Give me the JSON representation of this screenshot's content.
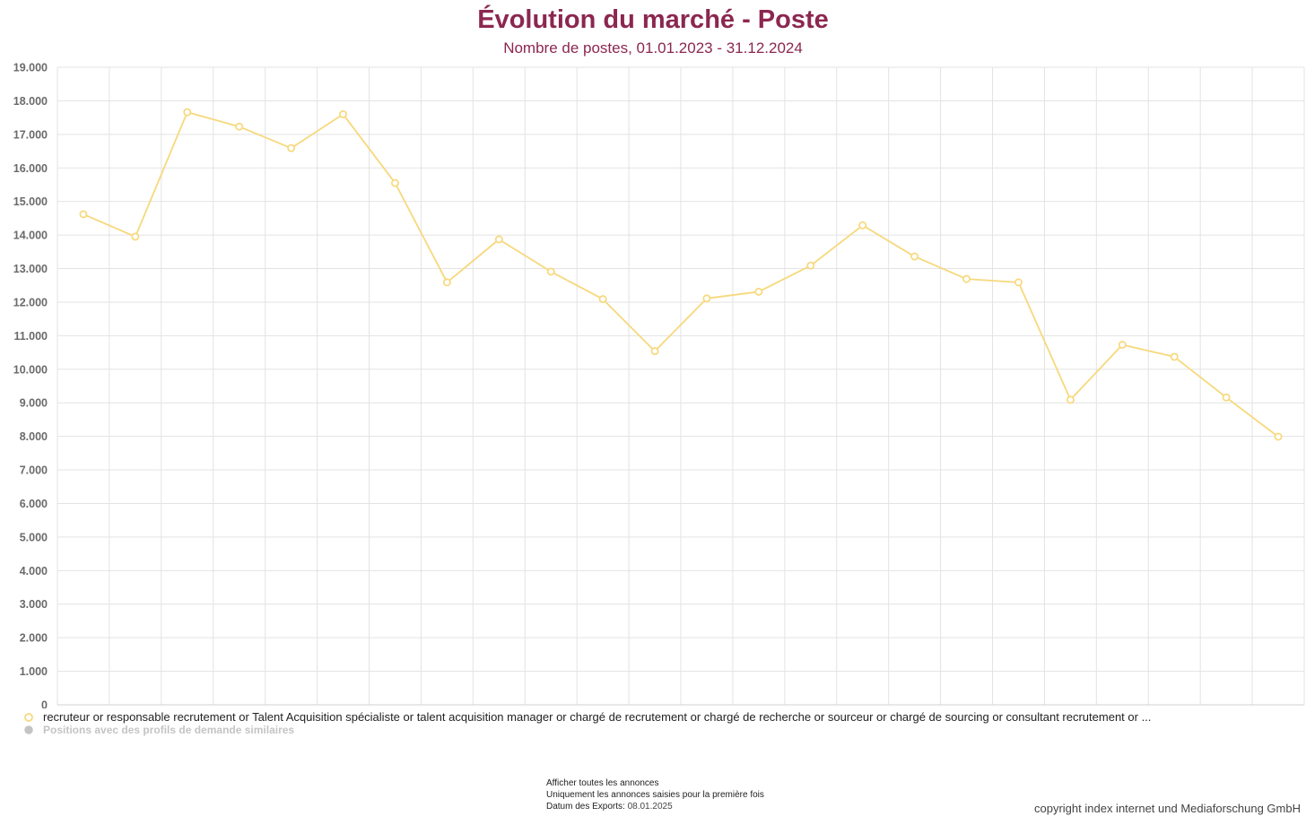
{
  "header": {
    "title": "Évolution du marché - Poste",
    "subtitle": "Nombre de postes, 01.01.2023 - 31.12.2024"
  },
  "chart_data": {
    "type": "line",
    "title": "Évolution du marché - Poste",
    "subtitle": "Nombre de postes, 01.01.2023 - 31.12.2024",
    "xlabel": "",
    "ylabel": "",
    "ylim": [
      0,
      19000
    ],
    "y_ticks": [
      "0",
      "1.000",
      "2.000",
      "3.000",
      "4.000",
      "5.000",
      "6.000",
      "7.000",
      "8.000",
      "9.000",
      "10.000",
      "11.000",
      "12.000",
      "13.000",
      "14.000",
      "15.000",
      "16.000",
      "17.000",
      "18.000",
      "19.000"
    ],
    "grid": true,
    "legend_position": "bottom-left",
    "series": [
      {
        "name": "recruteur or responsable recrutement or Talent Acquisition spécialiste or talent acquisition manager or chargé de recrutement or chargé de recherche or sourceur or chargé de sourcing or consultant recrutement or ...",
        "color": "#f7d87c",
        "values": [
          14620,
          13950,
          17660,
          17230,
          16590,
          17600,
          15550,
          12590,
          13870,
          12910,
          12090,
          10540,
          12110,
          12310,
          13090,
          14290,
          13360,
          12690,
          12590,
          9090,
          10730,
          10370,
          9160,
          7990
        ]
      },
      {
        "name": "Positions avec des profils de demande similaires",
        "color": "#c4c4c4",
        "values": []
      }
    ]
  },
  "footer": {
    "line1": "Afficher toutes les annonces",
    "line2": "Uniquement les annonces saisies pour la première fois",
    "export_label": "Datum des Exports:",
    "export_date": "08.01.2025",
    "copyright": "copyright index internet und Mediaforschung GmbH"
  }
}
